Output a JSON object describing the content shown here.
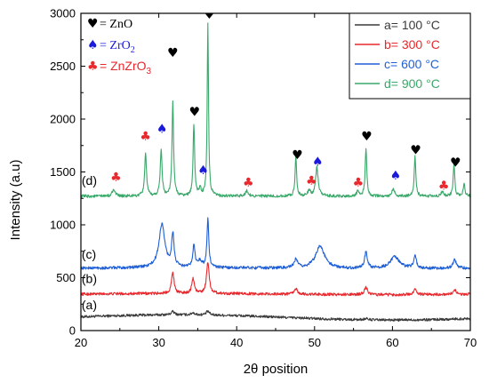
{
  "chart_data": {
    "type": "line",
    "xlabel": "2θ position",
    "ylabel": "Intensity (a.u)",
    "xlim": [
      20,
      70
    ],
    "ylim": [
      0,
      3000
    ],
    "xticks": [
      20,
      30,
      40,
      50,
      60,
      70
    ],
    "yticks": [
      0,
      500,
      1000,
      1500,
      2000,
      2500,
      3000
    ],
    "grid": false,
    "legend_position": "top-right",
    "series": [
      {
        "name": "a= 100 °C",
        "curve_label": "(a)",
        "color": "#3a3a3a",
        "baseline": 130,
        "slope": -0.2,
        "noise": 12,
        "wave": 22,
        "peaks": [
          [
            31.8,
            30,
            0.25
          ],
          [
            34.4,
            20,
            0.25
          ],
          [
            36.3,
            35,
            0.25
          ],
          [
            56.6,
            12,
            0.3
          ]
        ]
      },
      {
        "name": "b= 300 °C",
        "curve_label": "(b)",
        "color": "#e8282d",
        "baseline": 345,
        "slope": 0,
        "noise": 13,
        "wave": 6,
        "peaks": [
          [
            31.8,
            200,
            0.2
          ],
          [
            34.4,
            140,
            0.2
          ],
          [
            36.3,
            300,
            0.2
          ],
          [
            47.6,
            50,
            0.25
          ],
          [
            56.6,
            70,
            0.25
          ],
          [
            62.9,
            50,
            0.25
          ],
          [
            68.0,
            40,
            0.25
          ]
        ]
      },
      {
        "name": "c= 600 °C",
        "curve_label": "(c)",
        "color": "#1f5fd6",
        "baseline": 590,
        "slope": 0,
        "noise": 14,
        "wave": 4,
        "peaks": [
          [
            30.4,
            410,
            0.45
          ],
          [
            31.8,
            310,
            0.18
          ],
          [
            34.5,
            200,
            0.18
          ],
          [
            35.3,
            60,
            0.3
          ],
          [
            36.3,
            460,
            0.14
          ],
          [
            47.6,
            80,
            0.25
          ],
          [
            50.7,
            210,
            0.7
          ],
          [
            56.6,
            150,
            0.22
          ],
          [
            60.3,
            110,
            0.7
          ],
          [
            62.9,
            110,
            0.22
          ],
          [
            68.0,
            80,
            0.25
          ]
        ]
      },
      {
        "name": "d= 900 °C",
        "curve_label": "(d)",
        "color": "#3aa86a",
        "baseline": 1270,
        "slope": 0,
        "noise": 14,
        "wave": 0,
        "peaks": [
          [
            24.2,
            70,
            0.2
          ],
          [
            28.3,
            410,
            0.14
          ],
          [
            30.3,
            440,
            0.14
          ],
          [
            31.8,
            890,
            0.12
          ],
          [
            34.5,
            680,
            0.12
          ],
          [
            35.3,
            70,
            0.15
          ],
          [
            36.3,
            1640,
            0.1
          ],
          [
            41.3,
            50,
            0.25
          ],
          [
            47.6,
            380,
            0.12
          ],
          [
            49.3,
            50,
            0.2
          ],
          [
            50.3,
            270,
            0.2
          ],
          [
            55.6,
            50,
            0.2
          ],
          [
            56.6,
            460,
            0.12
          ],
          [
            60.1,
            70,
            0.2
          ],
          [
            62.9,
            390,
            0.12
          ],
          [
            66.4,
            45,
            0.2
          ],
          [
            67.9,
            310,
            0.12
          ],
          [
            69.2,
            130,
            0.12
          ]
        ]
      }
    ],
    "phase_key": [
      {
        "symbol": "♥",
        "label": "= ZnO",
        "color": "#000000",
        "font": "serif"
      },
      {
        "symbol": "♠",
        "label": "= ZrO",
        "sub": "2",
        "color": "#1a1adc",
        "font": "serif"
      },
      {
        "symbol": "♣",
        "label": "= ZnZrO",
        "sub": "3",
        "color": "#e8282d",
        "font": "sans"
      }
    ],
    "annotations": [
      {
        "symbol": "♥",
        "color": "#000000",
        "x": 31.8,
        "y": 2590
      },
      {
        "symbol": "♥",
        "color": "#000000",
        "x": 34.6,
        "y": 2030
      },
      {
        "symbol": "♥",
        "color": "#000000",
        "x": 36.5,
        "y": 2950
      },
      {
        "symbol": "♥",
        "color": "#000000",
        "x": 47.8,
        "y": 1620
      },
      {
        "symbol": "♥",
        "color": "#000000",
        "x": 56.7,
        "y": 1800
      },
      {
        "symbol": "♥",
        "color": "#000000",
        "x": 63.0,
        "y": 1670
      },
      {
        "symbol": "♥",
        "color": "#000000",
        "x": 68.1,
        "y": 1550
      },
      {
        "symbol": "♠",
        "color": "#1a1adc",
        "x": 30.4,
        "y": 1870
      },
      {
        "symbol": "♠",
        "color": "#1a1adc",
        "x": 35.7,
        "y": 1480
      },
      {
        "symbol": "♠",
        "color": "#1a1adc",
        "x": 50.4,
        "y": 1560
      },
      {
        "symbol": "♠",
        "color": "#1a1adc",
        "x": 60.4,
        "y": 1430
      },
      {
        "symbol": "♣",
        "color": "#e8282d",
        "x": 24.5,
        "y": 1410
      },
      {
        "symbol": "♣",
        "color": "#e8282d",
        "x": 28.3,
        "y": 1800
      },
      {
        "symbol": "♣",
        "color": "#e8282d",
        "x": 41.5,
        "y": 1360
      },
      {
        "symbol": "♣",
        "color": "#e8282d",
        "x": 49.6,
        "y": 1380
      },
      {
        "symbol": "♣",
        "color": "#e8282d",
        "x": 55.6,
        "y": 1360
      },
      {
        "symbol": "♣",
        "color": "#e8282d",
        "x": 66.6,
        "y": 1330
      }
    ],
    "curve_label_positions": [
      {
        "label": "(a)",
        "x": 20.1,
        "y": 200
      },
      {
        "label": "(b)",
        "x": 20.1,
        "y": 450
      },
      {
        "label": "(c)",
        "x": 20.1,
        "y": 680
      },
      {
        "label": "(d)",
        "x": 20.1,
        "y": 1380
      }
    ]
  }
}
